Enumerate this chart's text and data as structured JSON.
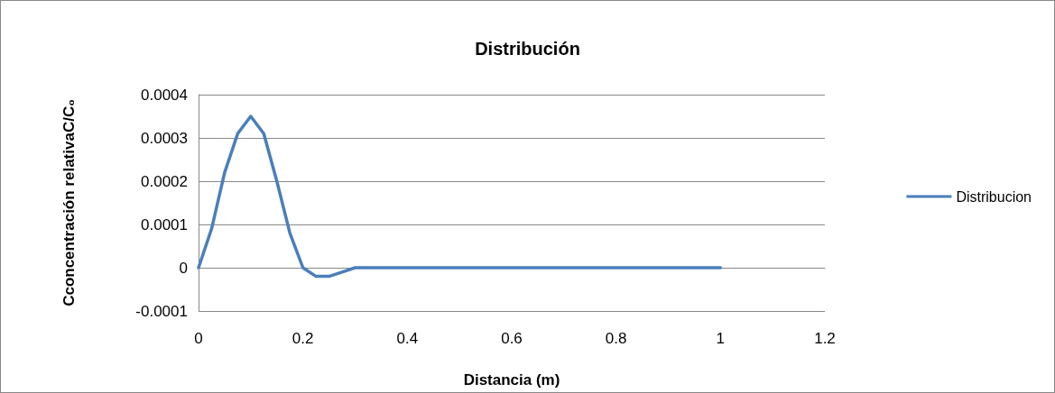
{
  "chart_data": {
    "type": "line",
    "title": "Distribución",
    "xlabel": "Distancia (m)",
    "ylabel": "Cconcentración relativaC/C₀",
    "x": [
      0,
      0.025,
      0.05,
      0.075,
      0.1,
      0.125,
      0.15,
      0.175,
      0.2,
      0.225,
      0.25,
      0.275,
      0.3,
      0.4,
      0.5,
      0.6,
      0.7,
      0.8,
      0.9,
      1
    ],
    "series": [
      {
        "name": "Distribucion",
        "color": "#4a7ebb",
        "values": [
          0,
          9e-05,
          0.00022,
          0.00031,
          0.00035,
          0.00031,
          0.0002,
          8e-05,
          0,
          -2e-05,
          -2e-05,
          -1e-05,
          0,
          0,
          0,
          0,
          0,
          0,
          0,
          0
        ]
      }
    ],
    "xlim": [
      0,
      1.2
    ],
    "xticks": [
      0,
      0.2,
      0.4,
      0.6,
      0.8,
      1,
      1.2
    ],
    "ylim": [
      -0.0001,
      0.0004
    ],
    "yticks": [
      -0.0001,
      0,
      0.0001,
      0.0002,
      0.0003,
      0.0004
    ],
    "grid": "y",
    "legend": "right",
    "marker": "none",
    "line_style": "solid"
  }
}
